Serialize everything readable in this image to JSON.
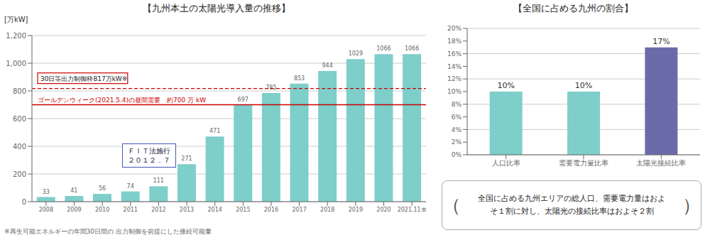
{
  "chart_data": [
    {
      "type": "bar",
      "title": "【九州本土の太陽光導入量の推移】",
      "y_label": "[万kW]",
      "categories": [
        "2008",
        "2009",
        "2010",
        "2011",
        "2012",
        "2013",
        "2014",
        "2015",
        "2016",
        "2017",
        "2018",
        "2019",
        "2020",
        "2021.11末"
      ],
      "values": [
        33,
        41,
        56,
        74,
        111,
        271,
        471,
        697,
        785,
        853,
        944,
        1029,
        1066,
        1066
      ],
      "color": "#7ECECA",
      "ylim": [
        0,
        1200
      ],
      "yticks": [
        0,
        200,
        400,
        600,
        800,
        {
          "value": 1000,
          "label": "1,000"
        },
        {
          "value": 1200,
          "label": "1,200"
        }
      ],
      "grid": true,
      "data_labels": true,
      "reference_lines": [
        {
          "value": 817,
          "label": "30日等出力制御枠817万kW※",
          "color": "#CC0000",
          "line_style": "dashed"
        },
        {
          "value": 700,
          "label": "ゴールデンウィーク(2021.5.4)の昼間需要　約700 万 kW",
          "color": "#CC0000",
          "line_style": "solid"
        }
      ],
      "annotations": [
        {
          "text": "ＦＩＴ法施行\n２０１２．７",
          "color": "#4455BB"
        }
      ],
      "footnote": "※再生可能エネルギーの年間30日間の 出力制御を前提にした接続可能量"
    },
    {
      "type": "bar",
      "title": "【全国に占める九州の割合】",
      "categories": [
        "人口比率",
        "需要電力量比率",
        "太陽光接続比率"
      ],
      "values": [
        10,
        10,
        17
      ],
      "value_labels": [
        "10%",
        "10%",
        "17%"
      ],
      "colors": [
        "#7ECECA",
        "#7ECECA",
        "#6B6BAA"
      ],
      "ylim": [
        0,
        20
      ],
      "yticks": [
        {
          "value": 0,
          "label": "0%"
        },
        {
          "value": 2,
          "label": "2%"
        },
        {
          "value": 4,
          "label": "4%"
        },
        {
          "value": 6,
          "label": "6%"
        },
        {
          "value": 8,
          "label": "8%"
        },
        {
          "value": 10,
          "label": "10%"
        },
        {
          "value": 12,
          "label": "12%"
        },
        {
          "value": 14,
          "label": "14%"
        },
        {
          "value": 16,
          "label": "16%"
        },
        {
          "value": 18,
          "label": "18%"
        },
        {
          "value": 20,
          "label": "20%"
        }
      ],
      "grid": true,
      "data_labels": true,
      "note": {
        "lines": [
          "全国に占める九州エリアの総人口、需要電力量はおよ",
          "そ１割に対し、太陽光の接続比率はおよそ２割"
        ],
        "open": "（",
        "close": "）"
      }
    }
  ]
}
